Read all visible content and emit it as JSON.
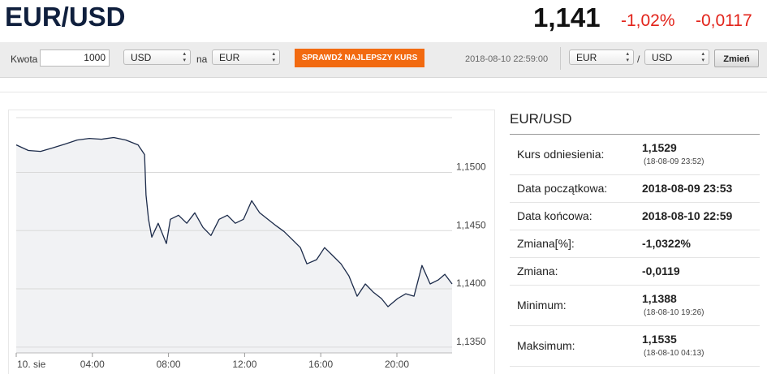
{
  "header": {
    "pair": "EUR/USD",
    "price": "1,141",
    "change_pct": "-1,02%",
    "change": "-0,0117"
  },
  "toolbar": {
    "amount_label": "Kwota",
    "amount": "1000",
    "from": "USD",
    "to_label": "na",
    "to": "EUR",
    "button": "SPRAWDŹ NAJLEPSZY KURS",
    "timestamp": "2018-08-10 22:59:00",
    "base": "EUR",
    "separator": "/",
    "quote": "USD",
    "swap_button": "Zmień"
  },
  "chart_data": {
    "type": "line",
    "x": [
      0,
      0.64,
      1.28,
      1.92,
      2.56,
      3.2,
      3.84,
      4.48,
      5.12,
      5.76,
      6.4,
      6.74,
      6.82,
      6.95,
      7.12,
      7.46,
      7.89,
      8.1,
      8.53,
      8.96,
      9.38,
      9.81,
      10.23,
      10.66,
      11.09,
      11.51,
      11.94,
      12.37,
      12.79,
      13.22,
      13.65,
      14.07,
      14.5,
      14.93,
      15.27,
      15.78,
      16.2,
      16.63,
      17.06,
      17.48,
      17.91,
      18.34,
      18.76,
      19.19,
      19.53,
      20.04,
      20.47,
      20.9,
      21.32,
      21.75,
      22.17,
      22.52,
      22.9
    ],
    "values": [
      1.15236,
      1.15188,
      1.1518,
      1.1521,
      1.15243,
      1.15278,
      1.15292,
      1.15285,
      1.15299,
      1.15278,
      1.15236,
      1.15153,
      1.14806,
      1.14597,
      1.14444,
      1.14563,
      1.14389,
      1.14597,
      1.14632,
      1.14563,
      1.14653,
      1.14528,
      1.14458,
      1.14597,
      1.14632,
      1.14563,
      1.14597,
      1.14757,
      1.14653,
      1.14597,
      1.14542,
      1.14493,
      1.14424,
      1.14354,
      1.14215,
      1.1425,
      1.14354,
      1.14285,
      1.14215,
      1.14111,
      1.13937,
      1.14042,
      1.13972,
      1.13917,
      1.13847,
      1.13917,
      1.13958,
      1.13937,
      1.14201,
      1.14042,
      1.14076,
      1.14125,
      1.14042
    ],
    "color": "#1c2b4a",
    "area_color": "#f1f2f4",
    "xlim": [
      0,
      22.9
    ],
    "xticks": [
      {
        "value": 0,
        "label": "10. sie"
      },
      {
        "value": 4,
        "label": "04:00"
      },
      {
        "value": 8,
        "label": "08:00"
      },
      {
        "value": 12,
        "label": "12:00"
      },
      {
        "value": 16,
        "label": "16:00"
      },
      {
        "value": 20,
        "label": "20:00"
      }
    ],
    "ylim": [
      1.1345,
      1.1547
    ],
    "yticks": [
      {
        "value": 1.135,
        "label": "1,1350"
      },
      {
        "value": 1.14,
        "label": "1,1400"
      },
      {
        "value": 1.145,
        "label": "1,1450"
      },
      {
        "value": 1.15,
        "label": "1,1500"
      }
    ],
    "grid": true
  },
  "details": {
    "title": "EUR/USD",
    "rows": [
      {
        "label": "Kurs odniesienia:",
        "value": "1,1529",
        "note": "(18-08-09 23:52)"
      },
      {
        "label": "Data początkowa:",
        "value": "2018-08-09 23:53"
      },
      {
        "label": "Data końcowa:",
        "value": "2018-08-10 22:59"
      },
      {
        "label": "Zmiana[%]:",
        "value": "-1,0322%"
      },
      {
        "label": "Zmiana:",
        "value": "-0,0119"
      },
      {
        "label": "Minimum:",
        "value": "1,1388",
        "note": "(18-08-10 19:26)"
      },
      {
        "label": "Maksimum:",
        "value": "1,1535",
        "note": "(18-08-10 04:13)"
      }
    ]
  }
}
